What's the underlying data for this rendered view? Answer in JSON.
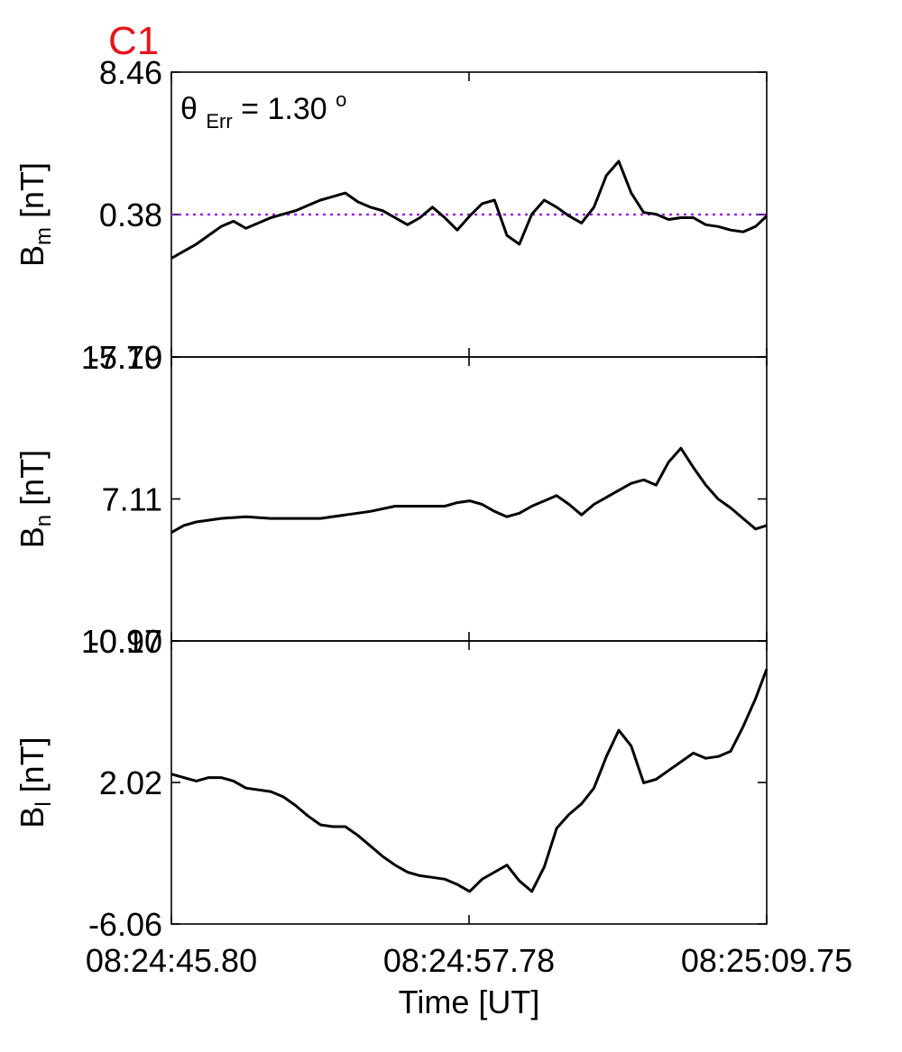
{
  "figure": {
    "label": "C1",
    "label_color": "#e8141b",
    "annotation_symbol": "θ",
    "annotation_subscript": "Err",
    "annotation_eq": " =  1.30",
    "annotation_superscript": "o",
    "xlabel": "Time [UT]",
    "x_tick_labels": [
      "08:24:45.80",
      "08:24:57.78",
      "08:25:09.75"
    ]
  },
  "chart_data": [
    {
      "type": "line",
      "ylabel_main": "B",
      "ylabel_sub": "m",
      "ylabel_unit": " [nT]",
      "ylim": [
        -7.7,
        8.46
      ],
      "y_ticks": [
        8.46,
        0.38,
        -7.7
      ],
      "y_tick_labels": [
        "8.46",
        "0.38",
        "-7.70"
      ],
      "xlim": [
        0,
        23.95
      ],
      "x_unit": "seconds after 08:24:45.80",
      "reference_line": {
        "value": 0.38,
        "color": "#a020f0",
        "style": "dotted"
      },
      "line_color": "#000000",
      "series": [
        {
          "x": [
            0,
            0.5,
            1.0,
            1.5,
            2.0,
            2.5,
            3.0,
            3.5,
            4.0,
            4.5,
            5.0,
            5.5,
            6.0,
            6.5,
            7.0,
            7.5,
            8.0,
            8.5,
            9.0,
            9.5,
            10.0,
            10.5,
            11.0,
            11.5,
            12.0,
            12.5,
            13.0,
            13.5,
            14.0,
            14.5,
            15.0,
            15.5,
            16.0,
            16.5,
            17.0,
            17.5,
            18.0,
            18.5,
            19.0,
            19.5,
            20.0,
            20.5,
            21.0,
            21.5,
            22.0,
            22.5,
            23.0,
            23.5,
            23.95
          ],
          "y": [
            -2.1,
            -1.7,
            -1.3,
            -0.8,
            -0.3,
            0.0,
            -0.4,
            -0.1,
            0.2,
            0.4,
            0.6,
            0.9,
            1.2,
            1.4,
            1.6,
            1.1,
            0.8,
            0.6,
            0.2,
            -0.2,
            0.2,
            0.8,
            0.2,
            -0.5,
            0.3,
            1.0,
            1.2,
            -0.8,
            -1.3,
            0.4,
            1.2,
            0.8,
            0.3,
            -0.1,
            0.8,
            2.6,
            3.4,
            1.6,
            0.5,
            0.4,
            0.1,
            0.2,
            0.2,
            -0.2,
            -0.3,
            -0.5,
            -0.6,
            -0.3,
            0.3
          ]
        }
      ]
    },
    {
      "type": "line",
      "ylabel_main": "B",
      "ylabel_sub": "n",
      "ylabel_unit": " [nT]",
      "ylim": [
        -0.97,
        15.19
      ],
      "y_ticks": [
        15.19,
        7.11,
        -0.97
      ],
      "y_tick_labels": [
        "15.19",
        "7.11",
        "-0.97"
      ],
      "xlim": [
        0,
        23.95
      ],
      "line_color": "#000000",
      "series": [
        {
          "x": [
            0,
            0.5,
            1.0,
            2.0,
            3.0,
            4.0,
            5.0,
            6.0,
            7.0,
            8.0,
            9.0,
            10.0,
            11.0,
            11.5,
            12.0,
            12.5,
            13.0,
            13.5,
            14.0,
            14.5,
            15.0,
            15.5,
            16.0,
            16.5,
            17.0,
            17.5,
            18.0,
            18.5,
            19.0,
            19.5,
            20.0,
            20.5,
            21.0,
            21.5,
            22.0,
            22.5,
            23.0,
            23.5,
            23.95
          ],
          "y": [
            5.2,
            5.6,
            5.8,
            6.0,
            6.1,
            6.0,
            6.0,
            6.0,
            6.2,
            6.4,
            6.7,
            6.7,
            6.7,
            6.9,
            7.0,
            6.8,
            6.4,
            6.1,
            6.3,
            6.7,
            7.0,
            7.3,
            6.8,
            6.2,
            6.8,
            7.2,
            7.6,
            8.0,
            8.2,
            7.9,
            9.2,
            10.0,
            8.9,
            7.9,
            7.1,
            6.6,
            6.0,
            5.4,
            5.6
          ]
        }
      ]
    },
    {
      "type": "line",
      "ylabel_main": "B",
      "ylabel_sub": "l",
      "ylabel_unit": " [nT]",
      "ylim": [
        -6.06,
        10.1
      ],
      "y_ticks": [
        10.1,
        2.02,
        -6.06
      ],
      "y_tick_labels": [
        "10.10",
        "2.02",
        "-6.06"
      ],
      "xlim": [
        0,
        23.95
      ],
      "line_color": "#000000",
      "series": [
        {
          "x": [
            0,
            0.5,
            1.0,
            1.5,
            2.0,
            2.5,
            3.0,
            3.5,
            4.0,
            4.5,
            5.0,
            5.5,
            6.0,
            6.5,
            7.0,
            7.5,
            8.0,
            8.5,
            9.0,
            9.5,
            10.0,
            10.5,
            11.0,
            11.5,
            12.0,
            12.5,
            13.0,
            13.5,
            14.0,
            14.5,
            15.0,
            15.5,
            16.0,
            16.5,
            17.0,
            17.5,
            18.0,
            18.5,
            19.0,
            19.5,
            20.0,
            20.5,
            21.0,
            21.5,
            22.0,
            22.5,
            23.0,
            23.5,
            23.95
          ],
          "y": [
            2.5,
            2.3,
            2.1,
            2.3,
            2.3,
            2.1,
            1.7,
            1.6,
            1.5,
            1.2,
            0.7,
            0.1,
            -0.4,
            -0.5,
            -0.5,
            -1.0,
            -1.6,
            -2.2,
            -2.7,
            -3.1,
            -3.3,
            -3.4,
            -3.5,
            -3.8,
            -4.2,
            -3.5,
            -3.1,
            -2.7,
            -3.6,
            -4.2,
            -2.8,
            -0.6,
            0.2,
            0.8,
            1.7,
            3.5,
            5.0,
            4.1,
            2.0,
            2.2,
            2.7,
            3.2,
            3.7,
            3.4,
            3.5,
            3.8,
            5.2,
            6.8,
            8.5
          ]
        }
      ]
    }
  ]
}
